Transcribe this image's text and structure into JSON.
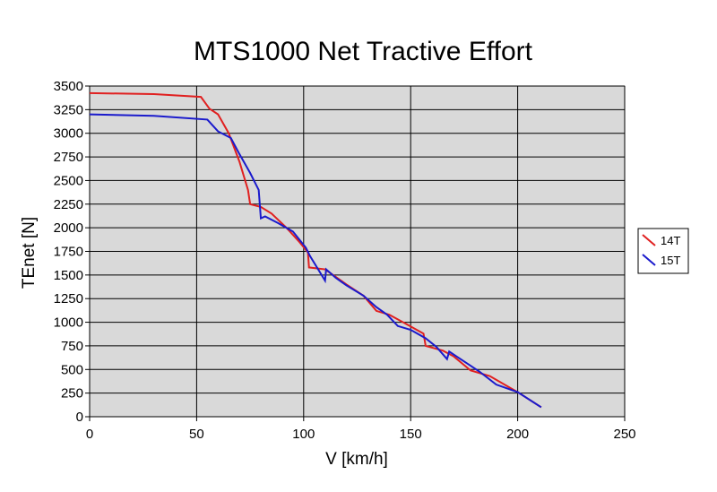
{
  "chart_data": {
    "type": "line",
    "title": "MTS1000 Net Tractive Effort",
    "xlabel": "V [km/h]",
    "ylabel": "TEnet [N]",
    "xlim": [
      0,
      250
    ],
    "ylim": [
      0,
      3500
    ],
    "xticks": [
      0,
      50,
      100,
      150,
      200,
      250
    ],
    "yticks": [
      0,
      250,
      500,
      750,
      1000,
      1250,
      1500,
      1750,
      2000,
      2250,
      2500,
      2750,
      3000,
      3250,
      3500
    ],
    "grid": true,
    "legend": "right",
    "plot_background": "#d9d9d9",
    "series": [
      {
        "name": "14T",
        "color": "#e02020",
        "points": [
          [
            0,
            3425
          ],
          [
            30,
            3415
          ],
          [
            52,
            3385
          ],
          [
            56,
            3260
          ],
          [
            60,
            3200
          ],
          [
            65,
            3000
          ],
          [
            70,
            2700
          ],
          [
            74,
            2400
          ],
          [
            75,
            2250
          ],
          [
            80,
            2220
          ],
          [
            85,
            2150
          ],
          [
            92,
            2000
          ],
          [
            98,
            1850
          ],
          [
            102,
            1740
          ],
          [
            102.5,
            1580
          ],
          [
            110,
            1560
          ],
          [
            115,
            1480
          ],
          [
            120,
            1400
          ],
          [
            128,
            1280
          ],
          [
            134,
            1120
          ],
          [
            140,
            1080
          ],
          [
            148,
            980
          ],
          [
            156,
            880
          ],
          [
            157,
            750
          ],
          [
            165,
            700
          ],
          [
            170,
            640
          ],
          [
            178,
            490
          ],
          [
            187,
            430
          ],
          [
            200,
            260
          ],
          [
            211,
            100
          ]
        ]
      },
      {
        "name": "15T",
        "color": "#1a1acc",
        "points": [
          [
            0,
            3200
          ],
          [
            30,
            3185
          ],
          [
            55,
            3145
          ],
          [
            60,
            3020
          ],
          [
            66,
            2950
          ],
          [
            70,
            2780
          ],
          [
            75,
            2580
          ],
          [
            79,
            2400
          ],
          [
            80,
            2100
          ],
          [
            82,
            2120
          ],
          [
            88,
            2050
          ],
          [
            95,
            1960
          ],
          [
            101,
            1790
          ],
          [
            103,
            1700
          ],
          [
            110,
            1440
          ],
          [
            110.5,
            1560
          ],
          [
            115,
            1470
          ],
          [
            120,
            1390
          ],
          [
            128,
            1280
          ],
          [
            134,
            1160
          ],
          [
            139,
            1080
          ],
          [
            144,
            960
          ],
          [
            150,
            920
          ],
          [
            157,
            830
          ],
          [
            162,
            740
          ],
          [
            167,
            610
          ],
          [
            168,
            690
          ],
          [
            176,
            570
          ],
          [
            182,
            480
          ],
          [
            190,
            340
          ],
          [
            200,
            260
          ],
          [
            211,
            100
          ]
        ]
      }
    ]
  }
}
